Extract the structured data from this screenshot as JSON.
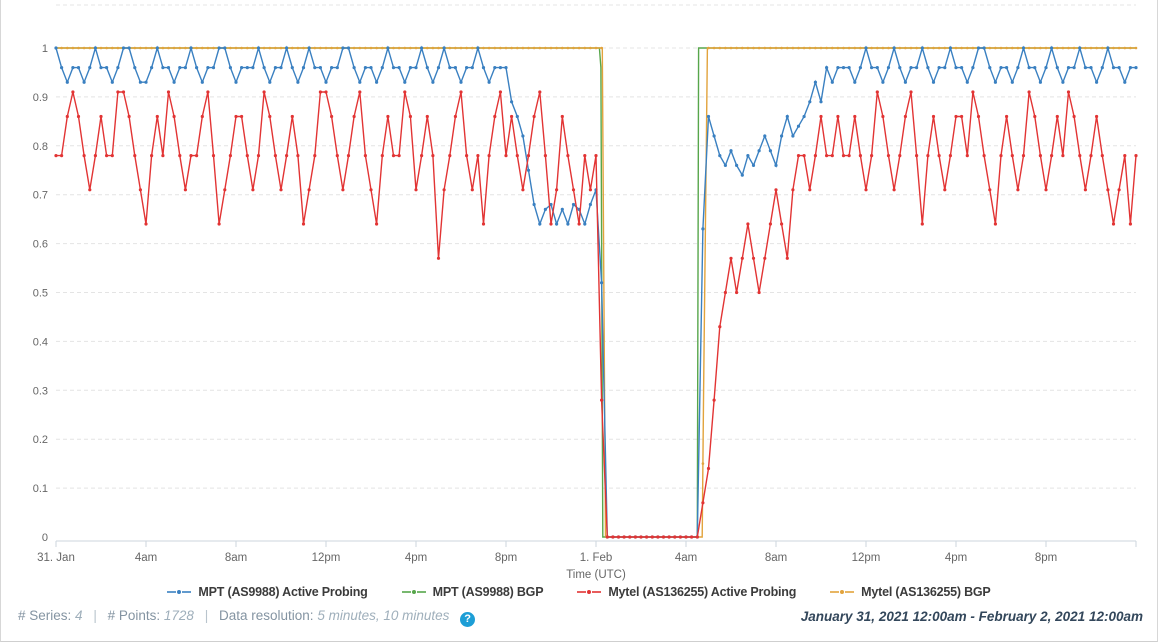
{
  "accent_colors": {
    "blue": "#3a80c1",
    "green": "#57a64b",
    "red": "#e23434",
    "orange": "#e2a33c",
    "grid": "#e4e4e4",
    "axis_line": "#ccd6dd",
    "tick_text": "#666666",
    "help_blue": "#1d9ed6"
  },
  "footer": {
    "series_label": "# Series:",
    "series_value": "4",
    "points_label": "# Points:",
    "points_value": "1728",
    "resolution_label": "Data resolution:",
    "resolution_value": "5 minutes, 10 minutes",
    "separator": "|",
    "help_glyph": "?",
    "date_range": "January 31, 2021 12:00am - February 2, 2021 12:00am"
  },
  "chart_data": {
    "type": "line",
    "title": "",
    "xlabel": "Time (UTC)",
    "ylabel": "",
    "ylim": [
      0,
      1
    ],
    "x_unit": "hours since 2021-01-31 00:00 UTC",
    "x_range_hours": [
      0,
      48
    ],
    "grid": "dashed horizontal",
    "legend_position": "bottom",
    "y_ticks": [
      {
        "v": 0,
        "label": "0"
      },
      {
        "v": 0.1,
        "label": "0.1"
      },
      {
        "v": 0.2,
        "label": "0.2"
      },
      {
        "v": 0.3,
        "label": "0.3"
      },
      {
        "v": 0.4,
        "label": "0.4"
      },
      {
        "v": 0.5,
        "label": "0.5"
      },
      {
        "v": 0.6,
        "label": "0.6"
      },
      {
        "v": 0.7,
        "label": "0.7"
      },
      {
        "v": 0.8,
        "label": "0.8"
      },
      {
        "v": 0.9,
        "label": "0.9"
      },
      {
        "v": 1,
        "label": "1"
      }
    ],
    "x_ticks": [
      {
        "t": 0,
        "label": "31. Jan"
      },
      {
        "t": 4,
        "label": "4am"
      },
      {
        "t": 8,
        "label": "8am"
      },
      {
        "t": 12,
        "label": "12pm"
      },
      {
        "t": 16,
        "label": "4pm"
      },
      {
        "t": 20,
        "label": "8pm"
      },
      {
        "t": 24,
        "label": "1. Feb"
      },
      {
        "t": 28,
        "label": "4am"
      },
      {
        "t": 32,
        "label": "8am"
      },
      {
        "t": 36,
        "label": "12pm"
      },
      {
        "t": 40,
        "label": "4pm"
      },
      {
        "t": 44,
        "label": "8pm"
      }
    ],
    "series": [
      {
        "name": "MPT (AS9988) BGP",
        "color": "#57a64b",
        "kind": "breakpoints",
        "markers": false,
        "points": [
          [
            0,
            1
          ],
          [
            24.15,
            1
          ],
          [
            24.22,
            0.96
          ],
          [
            24.3,
            0
          ],
          [
            28.5,
            0
          ],
          [
            28.56,
            1
          ],
          [
            48,
            1
          ]
        ]
      },
      {
        "name": "Mytel (AS136255) BGP",
        "color": "#e2a33c",
        "kind": "breakpoints",
        "markers": true,
        "marker_step": 0.25,
        "points": [
          [
            0,
            1
          ],
          [
            24.28,
            1
          ],
          [
            24.42,
            0
          ],
          [
            28.72,
            0
          ],
          [
            28.78,
            0.3
          ],
          [
            28.95,
            1
          ],
          [
            48,
            1
          ]
        ]
      },
      {
        "name": "MPT (AS9988) Active Probing",
        "color": "#3a80c1",
        "kind": "values",
        "markers": true,
        "start": 0,
        "step_hours": 0.25,
        "values": [
          1,
          0.96,
          0.93,
          0.96,
          0.96,
          0.93,
          0.96,
          1,
          0.96,
          0.96,
          0.93,
          0.96,
          1,
          1,
          0.96,
          0.93,
          0.93,
          0.96,
          1,
          0.96,
          0.96,
          0.93,
          0.96,
          0.96,
          1,
          0.96,
          0.93,
          0.96,
          0.96,
          1,
          1,
          0.96,
          0.93,
          0.96,
          0.96,
          0.96,
          1,
          0.96,
          0.93,
          0.96,
          0.96,
          1,
          0.96,
          0.93,
          0.96,
          1,
          0.96,
          0.96,
          0.93,
          0.96,
          0.96,
          1,
          1,
          0.96,
          0.93,
          0.96,
          0.96,
          0.93,
          0.96,
          1,
          0.96,
          0.96,
          0.93,
          0.96,
          0.96,
          1,
          0.96,
          0.93,
          0.96,
          1,
          0.96,
          0.96,
          0.93,
          0.96,
          0.96,
          1,
          0.96,
          0.93,
          0.96,
          0.96,
          0.96,
          0.89,
          0.86,
          0.82,
          0.75,
          0.68,
          0.64,
          0.67,
          0.68,
          0.64,
          0.67,
          0.64,
          0.68,
          0.67,
          0.64,
          0.68,
          0.71,
          0.52,
          0,
          0,
          0,
          0,
          0,
          0,
          0,
          0,
          0,
          0,
          0,
          0,
          0,
          0,
          0,
          0,
          0,
          0.63,
          0.86,
          0.82,
          0.78,
          0.76,
          0.79,
          0.76,
          0.74,
          0.78,
          0.76,
          0.79,
          0.82,
          0.79,
          0.76,
          0.82,
          0.86,
          0.82,
          0.84,
          0.86,
          0.89,
          0.93,
          0.89,
          0.96,
          0.93,
          0.96,
          0.96,
          0.96,
          0.93,
          0.96,
          1,
          0.96,
          0.96,
          0.93,
          0.96,
          1,
          0.96,
          0.93,
          0.96,
          0.96,
          1,
          0.96,
          0.93,
          0.96,
          0.96,
          1,
          0.96,
          0.96,
          0.93,
          0.96,
          1,
          1,
          0.96,
          0.93,
          0.96,
          0.96,
          0.93,
          0.96,
          1,
          0.96,
          0.96,
          0.93,
          0.96,
          1,
          0.96,
          0.93,
          0.96,
          0.96,
          1,
          0.96,
          0.96,
          0.93,
          0.96,
          1,
          0.96,
          0.96,
          0.93,
          0.96,
          0.96
        ]
      },
      {
        "name": "Mytel (AS136255) Active Probing",
        "color": "#e23434",
        "kind": "values",
        "markers": true,
        "start": 0,
        "step_hours": 0.25,
        "values": [
          0.78,
          0.78,
          0.86,
          0.91,
          0.86,
          0.78,
          0.71,
          0.78,
          0.86,
          0.78,
          0.78,
          0.91,
          0.91,
          0.86,
          0.78,
          0.71,
          0.64,
          0.78,
          0.86,
          0.78,
          0.91,
          0.86,
          0.78,
          0.71,
          0.78,
          0.78,
          0.86,
          0.91,
          0.78,
          0.64,
          0.71,
          0.78,
          0.86,
          0.86,
          0.78,
          0.71,
          0.78,
          0.91,
          0.86,
          0.78,
          0.71,
          0.78,
          0.86,
          0.78,
          0.64,
          0.71,
          0.78,
          0.91,
          0.91,
          0.86,
          0.78,
          0.71,
          0.78,
          0.86,
          0.91,
          0.78,
          0.71,
          0.64,
          0.78,
          0.86,
          0.78,
          0.78,
          0.91,
          0.86,
          0.71,
          0.78,
          0.86,
          0.78,
          0.57,
          0.71,
          0.78,
          0.86,
          0.91,
          0.78,
          0.71,
          0.78,
          0.64,
          0.78,
          0.86,
          0.91,
          0.78,
          0.86,
          0.78,
          0.71,
          0.78,
          0.86,
          0.91,
          0.78,
          0.64,
          0.71,
          0.86,
          0.78,
          0.71,
          0.64,
          0.78,
          0.71,
          0.78,
          0.28,
          0,
          0,
          0,
          0,
          0,
          0,
          0,
          0,
          0,
          0,
          0,
          0,
          0,
          0,
          0,
          0,
          0,
          0.07,
          0.14,
          0.28,
          0.43,
          0.5,
          0.57,
          0.5,
          0.57,
          0.64,
          0.57,
          0.5,
          0.57,
          0.64,
          0.71,
          0.64,
          0.57,
          0.71,
          0.78,
          0.78,
          0.71,
          0.78,
          0.86,
          0.78,
          0.78,
          0.86,
          0.78,
          0.78,
          0.86,
          0.78,
          0.71,
          0.78,
          0.91,
          0.86,
          0.78,
          0.71,
          0.78,
          0.86,
          0.91,
          0.78,
          0.64,
          0.78,
          0.86,
          0.78,
          0.71,
          0.78,
          0.86,
          0.86,
          0.78,
          0.91,
          0.86,
          0.78,
          0.71,
          0.64,
          0.78,
          0.86,
          0.78,
          0.71,
          0.78,
          0.91,
          0.86,
          0.78,
          0.71,
          0.78,
          0.86,
          0.78,
          0.91,
          0.86,
          0.78,
          0.71,
          0.78,
          0.86,
          0.78,
          0.71,
          0.64,
          0.71,
          0.78,
          0.64,
          0.78
        ]
      }
    ]
  }
}
